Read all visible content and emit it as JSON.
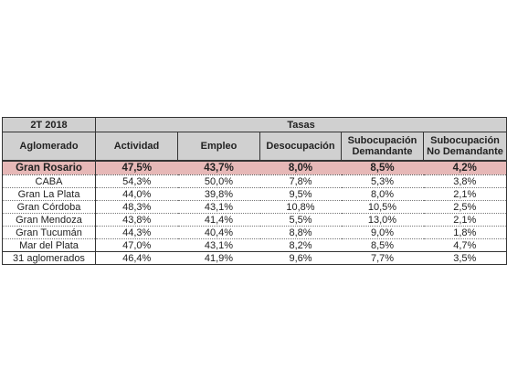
{
  "table": {
    "corner": "2T 2018",
    "group_header": "Tasas",
    "columns": [
      "Aglomerado",
      "Actividad",
      "Empleo",
      "Desocupación",
      "Subocupación Demandante",
      "Subocupación No Demandante"
    ],
    "highlight_row": {
      "name": "Gran Rosario",
      "values": [
        "47,5%",
        "43,7%",
        "8,0%",
        "8,5%",
        "4,2%"
      ]
    },
    "rows": [
      {
        "name": "CABA",
        "values": [
          "54,3%",
          "50,0%",
          "7,8%",
          "5,3%",
          "3,8%"
        ]
      },
      {
        "name": "Gran La Plata",
        "values": [
          "44,0%",
          "39,8%",
          "9,5%",
          "8,0%",
          "2,1%"
        ]
      },
      {
        "name": "Gran Córdoba",
        "values": [
          "48,3%",
          "43,1%",
          "10,8%",
          "10,5%",
          "2,5%"
        ]
      },
      {
        "name": "Gran Mendoza",
        "values": [
          "43,8%",
          "41,4%",
          "5,5%",
          "13,0%",
          "2,1%"
        ]
      },
      {
        "name": "Gran Tucumán",
        "values": [
          "44,3%",
          "40,4%",
          "8,8%",
          "9,0%",
          "1,8%"
        ]
      },
      {
        "name": "Mar del Plata",
        "values": [
          "47,0%",
          "43,1%",
          "8,2%",
          "8,5%",
          "4,7%"
        ]
      }
    ],
    "total_row": {
      "name": "31 aglomerados",
      "values": [
        "46,4%",
        "41,9%",
        "9,6%",
        "7,7%",
        "3,5%"
      ]
    }
  },
  "colors": {
    "header_bg": "#d0d0d0",
    "highlight_bg": "#e6b8b7"
  }
}
